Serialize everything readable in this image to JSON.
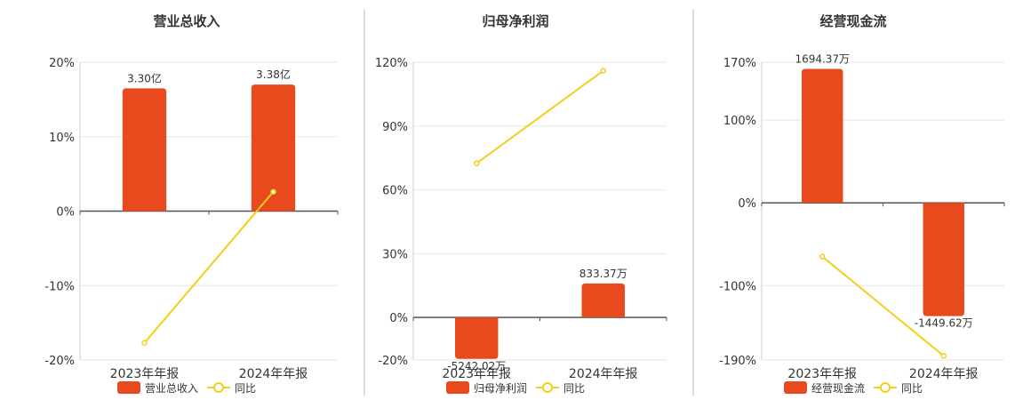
{
  "colors": {
    "bar": "#E8491D",
    "line": "#F2CF1A",
    "grid": "#E6E6E6",
    "axis": "#555555",
    "divider": "#BBBBBB",
    "text": "#333333"
  },
  "legend_line_label": "同比",
  "chart_data": [
    {
      "type": "bar",
      "title": "营业总收入",
      "categories": [
        "2023年年报",
        "2024年年报"
      ],
      "y_ticks": [
        20,
        10,
        0,
        -10,
        -20
      ],
      "y_tick_labels": [
        "20%",
        "10%",
        "0%",
        "-10%",
        "-20%"
      ],
      "ylim": [
        -20,
        20
      ],
      "series": [
        {
          "name": "营业总收入",
          "type": "bar",
          "values": [
            16.5,
            17.0
          ],
          "labels": [
            "3.30亿",
            "3.38亿"
          ]
        },
        {
          "name": "同比",
          "type": "line",
          "values": [
            -17.7,
            2.6
          ]
        }
      ]
    },
    {
      "type": "bar",
      "title": "归母净利润",
      "categories": [
        "2023年年报",
        "2024年年报"
      ],
      "y_ticks": [
        120,
        90,
        60,
        30,
        0,
        -20
      ],
      "y_tick_labels": [
        "120%",
        "90%",
        "60%",
        "30%",
        "0%",
        "-20%"
      ],
      "ylim": [
        -20,
        120
      ],
      "series": [
        {
          "name": "归母净利润",
          "type": "bar",
          "values": [
            -19.5,
            16.0
          ],
          "labels": [
            "-5242.02万",
            "833.37万"
          ]
        },
        {
          "name": "同比",
          "type": "line",
          "values": [
            72.5,
            116.0
          ]
        }
      ]
    },
    {
      "type": "bar",
      "title": "经营现金流",
      "categories": [
        "2023年年报",
        "2024年年报"
      ],
      "y_ticks": [
        170,
        100,
        0,
        -100,
        -190
      ],
      "y_tick_labels": [
        "170%",
        "100%",
        "0%",
        "-100%",
        "-190%"
      ],
      "ylim": [
        -190,
        170
      ],
      "series": [
        {
          "name": "经营现金流",
          "type": "bar",
          "values": [
            162.0,
            -137.0
          ],
          "labels": [
            "1694.37万",
            "-1449.62万"
          ]
        },
        {
          "name": "同比",
          "type": "line",
          "values": [
            -65.0,
            -185.0
          ]
        }
      ]
    }
  ]
}
